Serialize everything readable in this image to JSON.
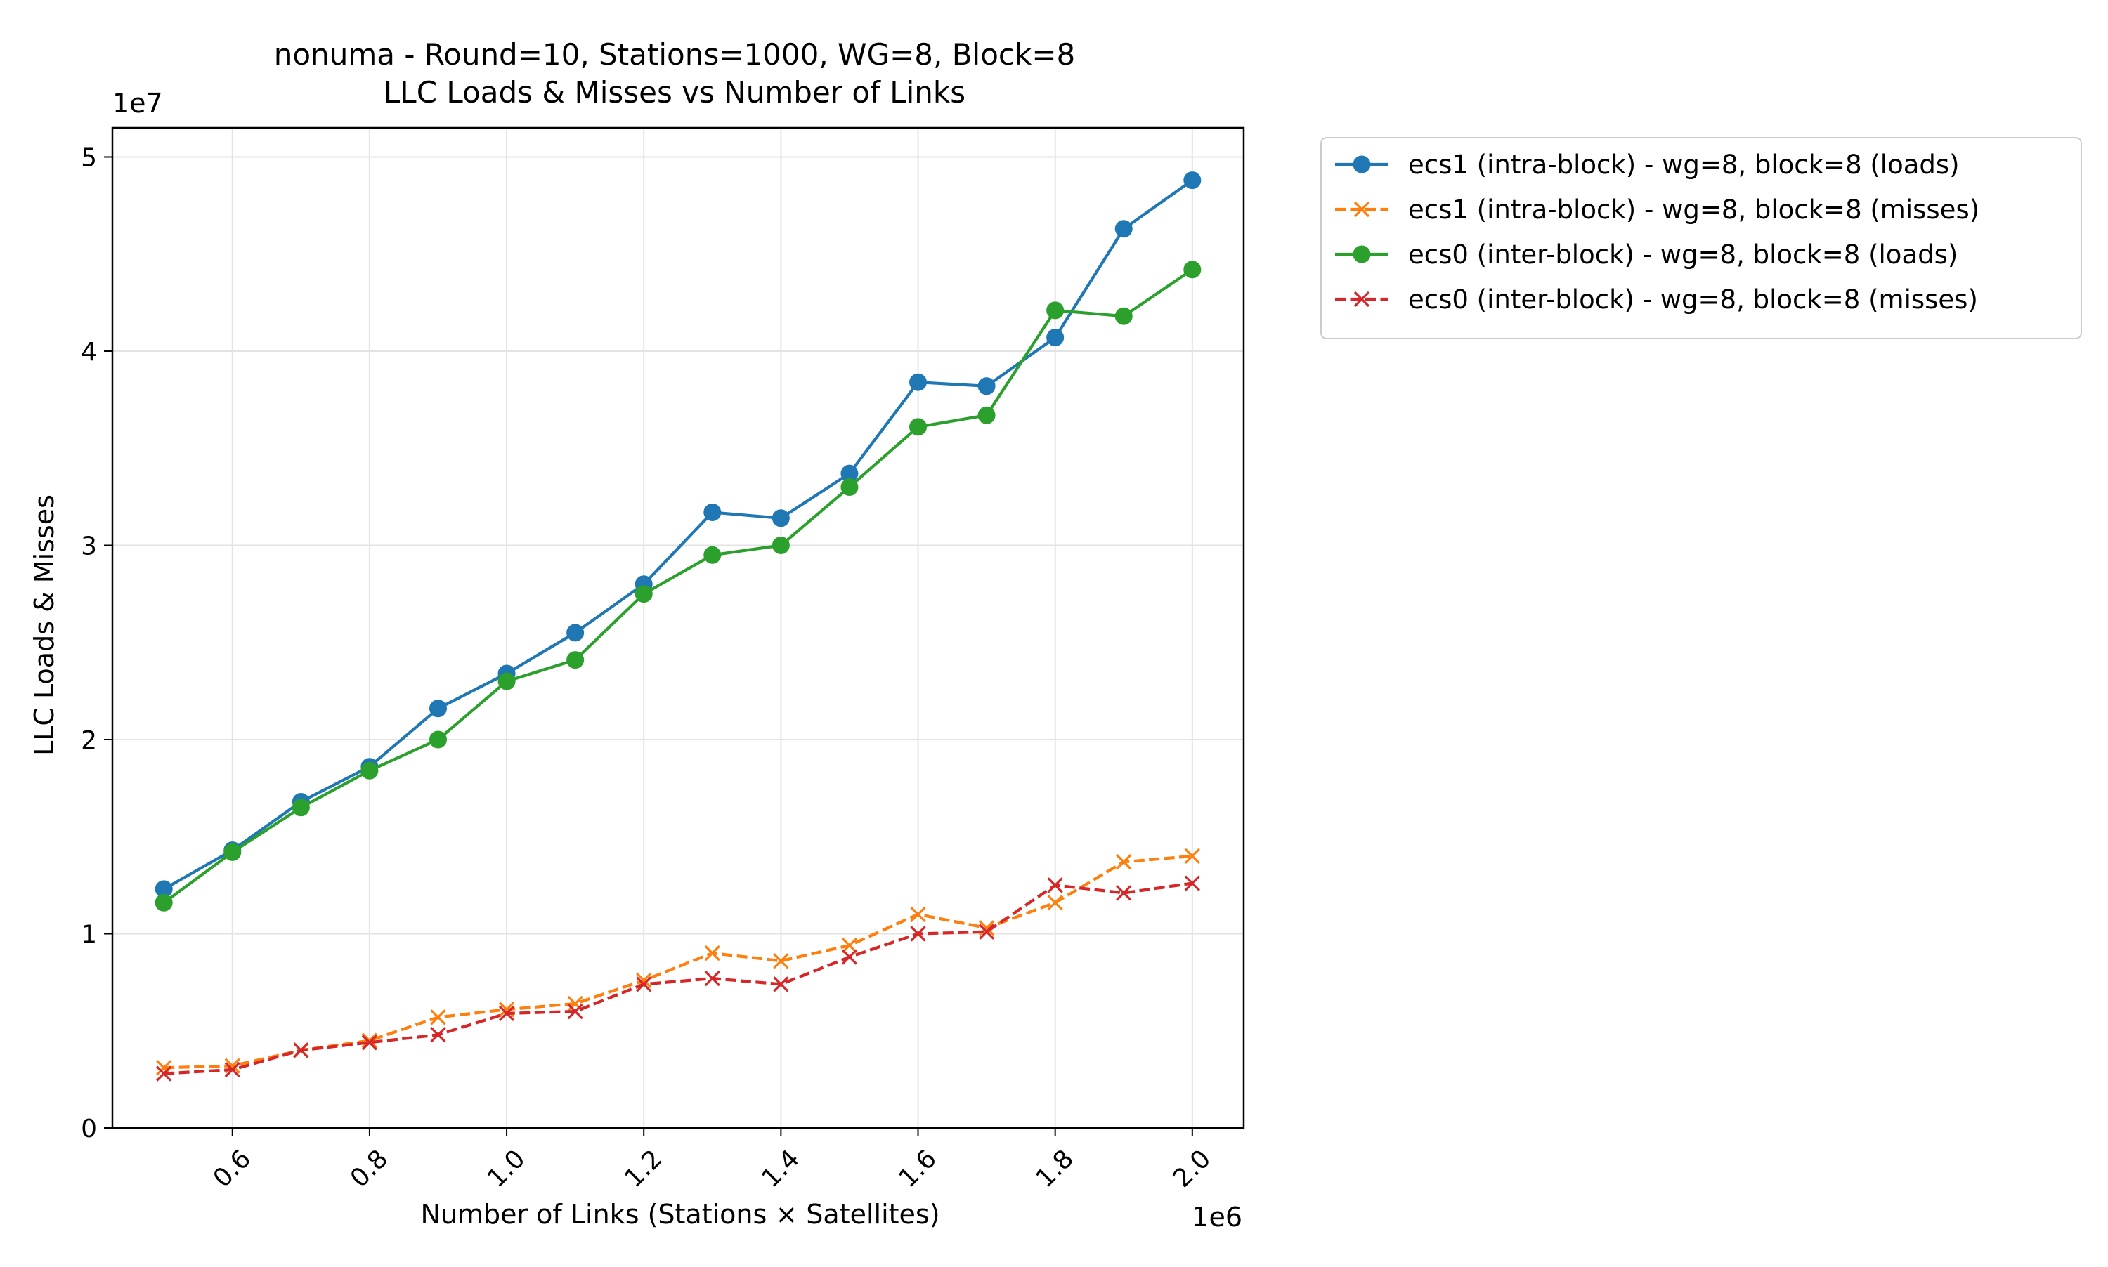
{
  "chart_data": {
    "type": "line",
    "title_line1": "nonuma - Round=10, Stations=1000, WG=8, Block=8",
    "title_line2": "LLC Loads & Misses vs Number of Links",
    "xlabel": "Number of Links (Stations × Satellites)",
    "ylabel": "LLC Loads & Misses",
    "x_offset_label": "1e6",
    "y_offset_label": "1e7",
    "x_scale": 1000000,
    "y_scale": 10000000,
    "xlim": [
      0.425,
      2.075
    ],
    "ylim": [
      0,
      5.15
    ],
    "xticks": [
      0.6,
      0.8,
      1.0,
      1.2,
      1.4,
      1.6,
      1.8,
      2.0
    ],
    "xtick_labels": [
      "0.6",
      "0.8",
      "1.0",
      "1.2",
      "1.4",
      "1.6",
      "1.8",
      "2.0"
    ],
    "yticks": [
      0,
      1,
      2,
      3,
      4,
      5
    ],
    "ytick_labels": [
      "0",
      "1",
      "2",
      "3",
      "4",
      "5"
    ],
    "grid": true,
    "legend_position": "outside-right-top",
    "x": [
      0.5,
      0.6,
      0.7,
      0.8,
      0.9,
      1.0,
      1.1,
      1.2,
      1.3,
      1.4,
      1.5,
      1.6,
      1.7,
      1.8,
      1.9,
      2.0
    ],
    "series": [
      {
        "name": "ecs1 (intra-block) - wg=8, block=8 (loads)",
        "color": "#1f77b4",
        "marker": "circle",
        "linestyle": "solid",
        "values": [
          1.23,
          1.43,
          1.68,
          1.86,
          2.16,
          2.34,
          2.55,
          2.8,
          3.17,
          3.14,
          3.37,
          3.84,
          3.82,
          4.07,
          4.63,
          4.88
        ]
      },
      {
        "name": "ecs1 (intra-block) - wg=8, block=8 (misses)",
        "color": "#ff7f0e",
        "marker": "x",
        "linestyle": "dashed",
        "values": [
          0.31,
          0.32,
          0.4,
          0.45,
          0.57,
          0.61,
          0.64,
          0.76,
          0.9,
          0.86,
          0.94,
          1.1,
          1.03,
          1.16,
          1.37,
          1.4
        ]
      },
      {
        "name": "ecs0 (inter-block) - wg=8, block=8 (loads)",
        "color": "#2ca02c",
        "marker": "circle",
        "linestyle": "solid",
        "values": [
          1.16,
          1.42,
          1.65,
          1.84,
          2.0,
          2.3,
          2.41,
          2.75,
          2.95,
          3.0,
          3.3,
          3.61,
          3.67,
          4.21,
          4.18,
          4.42
        ]
      },
      {
        "name": "ecs0 (inter-block) - wg=8, block=8 (misses)",
        "color": "#d62728",
        "marker": "x",
        "linestyle": "dashed",
        "values": [
          0.28,
          0.3,
          0.4,
          0.44,
          0.48,
          0.59,
          0.6,
          0.74,
          0.77,
          0.74,
          0.88,
          1.0,
          1.01,
          1.25,
          1.21,
          1.26
        ]
      }
    ]
  }
}
